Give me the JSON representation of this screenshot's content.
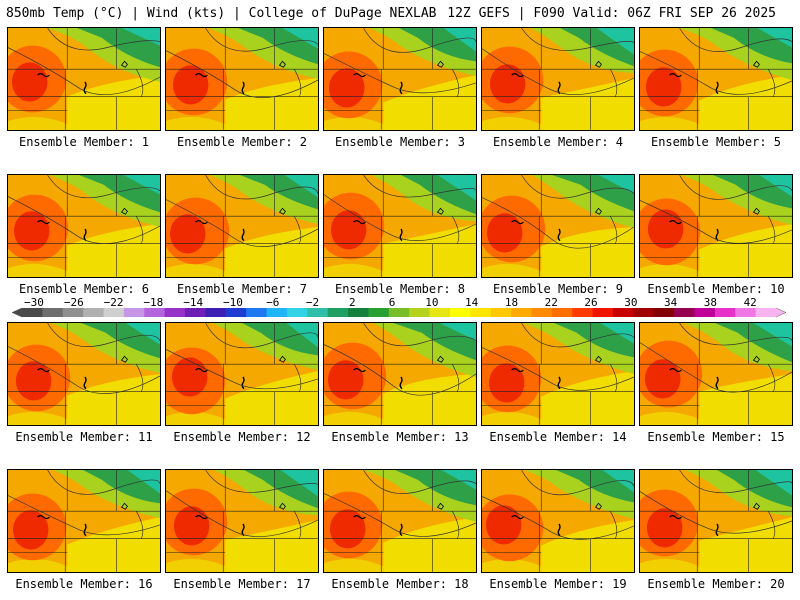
{
  "header": {
    "left": "850mb Temp (°C) | Wind (kts) | College of DuPage NEXLAB",
    "right": "12Z GEFS | F090 Valid: 06Z FRI SEP 26 2025"
  },
  "members": [
    {
      "label": "Ensemble Member: 1"
    },
    {
      "label": "Ensemble Member: 2"
    },
    {
      "label": "Ensemble Member: 3"
    },
    {
      "label": "Ensemble Member: 4"
    },
    {
      "label": "Ensemble Member: 5"
    },
    {
      "label": "Ensemble Member: 6"
    },
    {
      "label": "Ensemble Member: 7"
    },
    {
      "label": "Ensemble Member: 8"
    },
    {
      "label": "Ensemble Member: 9"
    },
    {
      "label": "Ensemble Member: 10"
    },
    {
      "label": "Ensemble Member: 11"
    },
    {
      "label": "Ensemble Member: 12"
    },
    {
      "label": "Ensemble Member: 13"
    },
    {
      "label": "Ensemble Member: 14"
    },
    {
      "label": "Ensemble Member: 15"
    },
    {
      "label": "Ensemble Member: 16"
    },
    {
      "label": "Ensemble Member: 17"
    },
    {
      "label": "Ensemble Member: 18"
    },
    {
      "label": "Ensemble Member: 19"
    },
    {
      "label": "Ensemble Member: 20"
    }
  ],
  "colorbar": {
    "ticks": [
      "−30",
      "−26",
      "−22",
      "−18",
      "−14",
      "−10",
      "−6",
      "−2",
      "2",
      "6",
      "10",
      "14",
      "18",
      "22",
      "26",
      "30",
      "34",
      "38",
      "42"
    ],
    "colors": [
      "#4a4a4a",
      "#6e6e6e",
      "#8f8f8f",
      "#b0b0b0",
      "#cfcfcf",
      "#c896e6",
      "#b464dc",
      "#9632c8",
      "#6e1eb4",
      "#3c1eb4",
      "#1e3cd2",
      "#1e78f0",
      "#1eb4f5",
      "#32d2e6",
      "#2ebeaa",
      "#1ea064",
      "#14823c",
      "#28a032",
      "#78be28",
      "#b4d21e",
      "#e6e614",
      "#ffff00",
      "#ffe600",
      "#ffc800",
      "#ffaa00",
      "#ff8c00",
      "#ff6e00",
      "#ff3c00",
      "#f01400",
      "#c80000",
      "#a00000",
      "#820000",
      "#960050",
      "#be0096",
      "#e632c8",
      "#f078e6",
      "#f8b4f0"
    ]
  }
}
